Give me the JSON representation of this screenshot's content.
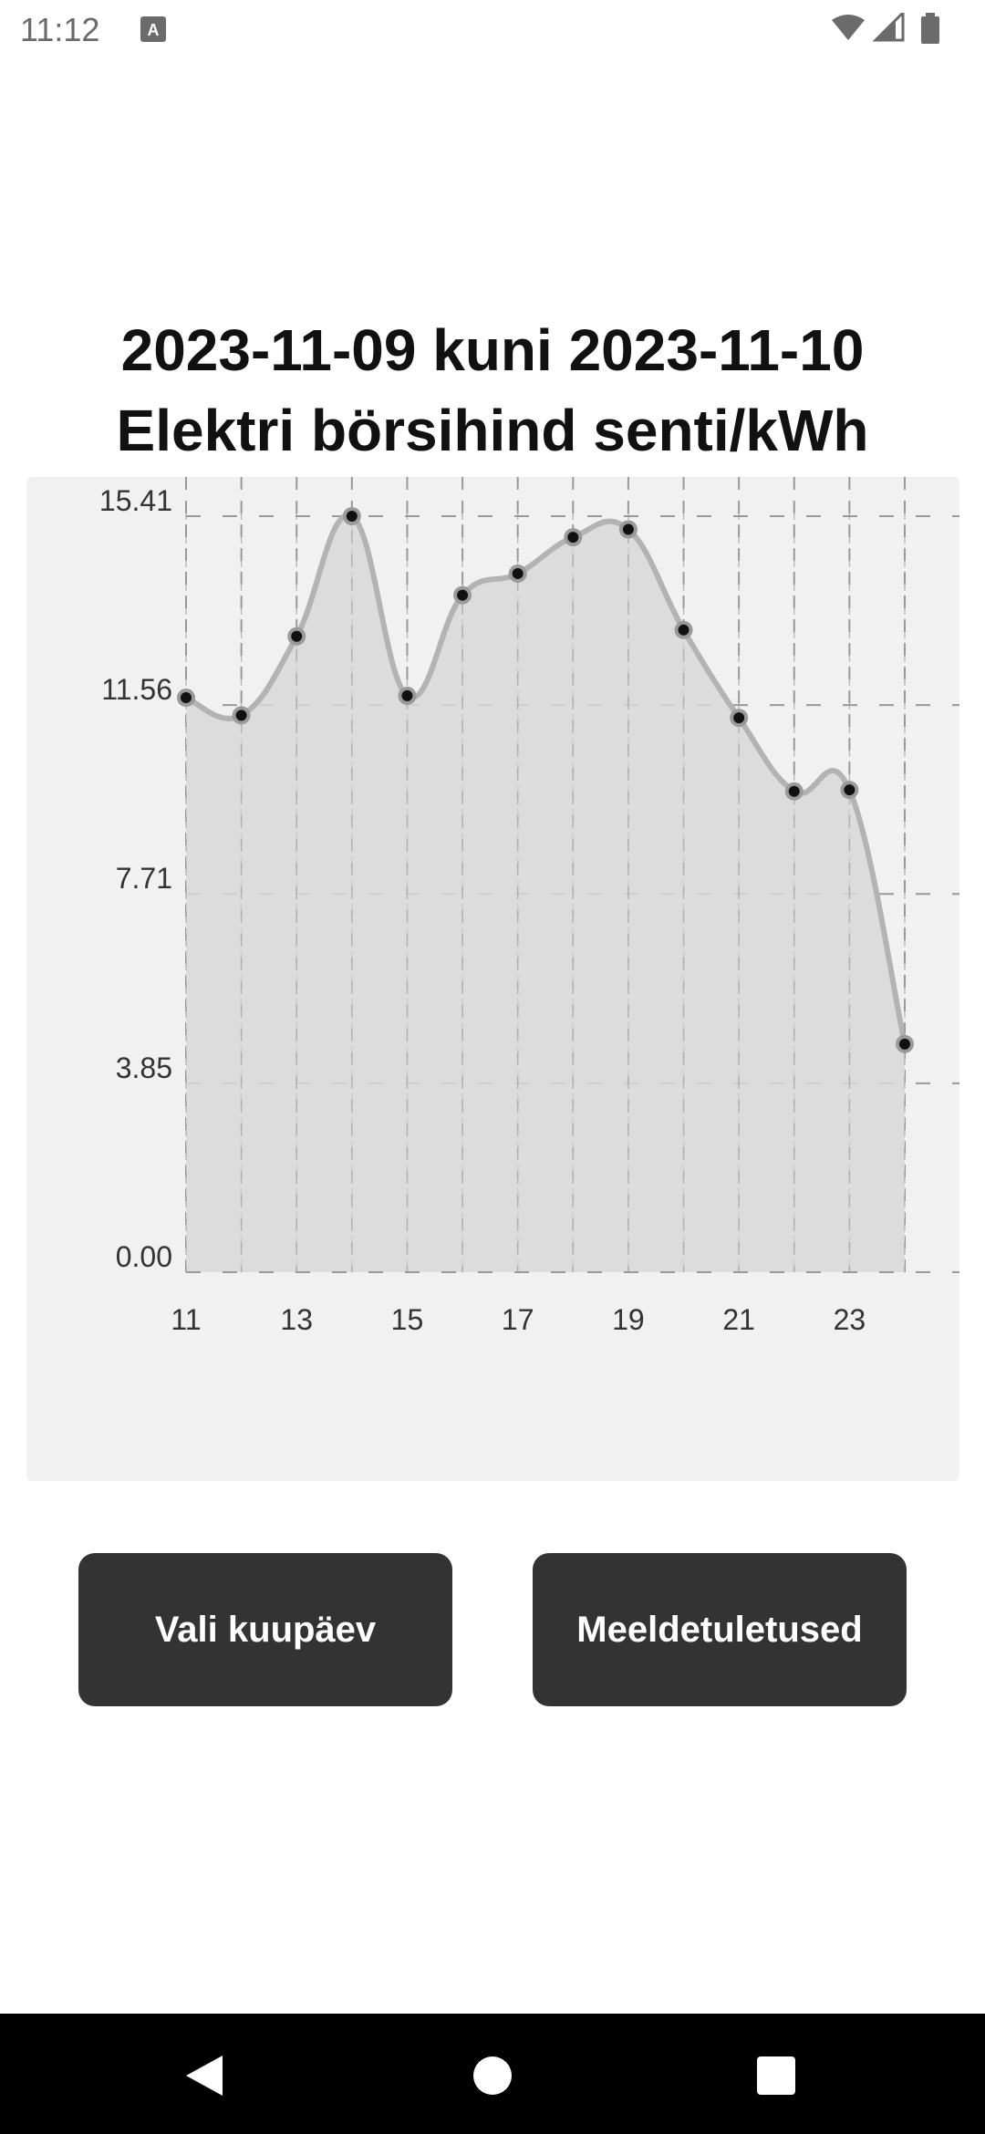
{
  "status_bar": {
    "time": "11:12",
    "icons": [
      "keyboard-a-icon",
      "wifi-icon",
      "signal-icon",
      "battery-icon"
    ]
  },
  "title": {
    "line1": "2023-11-09 kuni 2023-11-10",
    "line2": "Elektri börsihind senti/kWh"
  },
  "chart_data": {
    "type": "line",
    "x": [
      11,
      12,
      13,
      14,
      15,
      16,
      17,
      18,
      19,
      20,
      21,
      22,
      23,
      24
    ],
    "values": [
      11.71,
      11.35,
      12.96,
      15.41,
      11.75,
      13.8,
      14.24,
      14.98,
      15.14,
      13.09,
      11.3,
      9.8,
      9.83,
      4.65
    ],
    "x_ticks": [
      "11",
      "13",
      "15",
      "17",
      "19",
      "21",
      "23"
    ],
    "y_ticks": [
      "0.00",
      "3.85",
      "7.71",
      "11.56",
      "15.41"
    ],
    "ylim": [
      0,
      15.41
    ],
    "xlim": [
      11,
      24
    ],
    "grid": true,
    "fill": "area",
    "colors": {
      "line": "#b3b3b3",
      "fill": "#d8d8d8",
      "point": "#111111",
      "grid": "#999999"
    }
  },
  "buttons": {
    "select_date": "Vali kuupäev",
    "reminders": "Meeldetuletused"
  },
  "nav_bar": {
    "icons": [
      "back-icon",
      "home-icon",
      "recents-icon"
    ]
  }
}
